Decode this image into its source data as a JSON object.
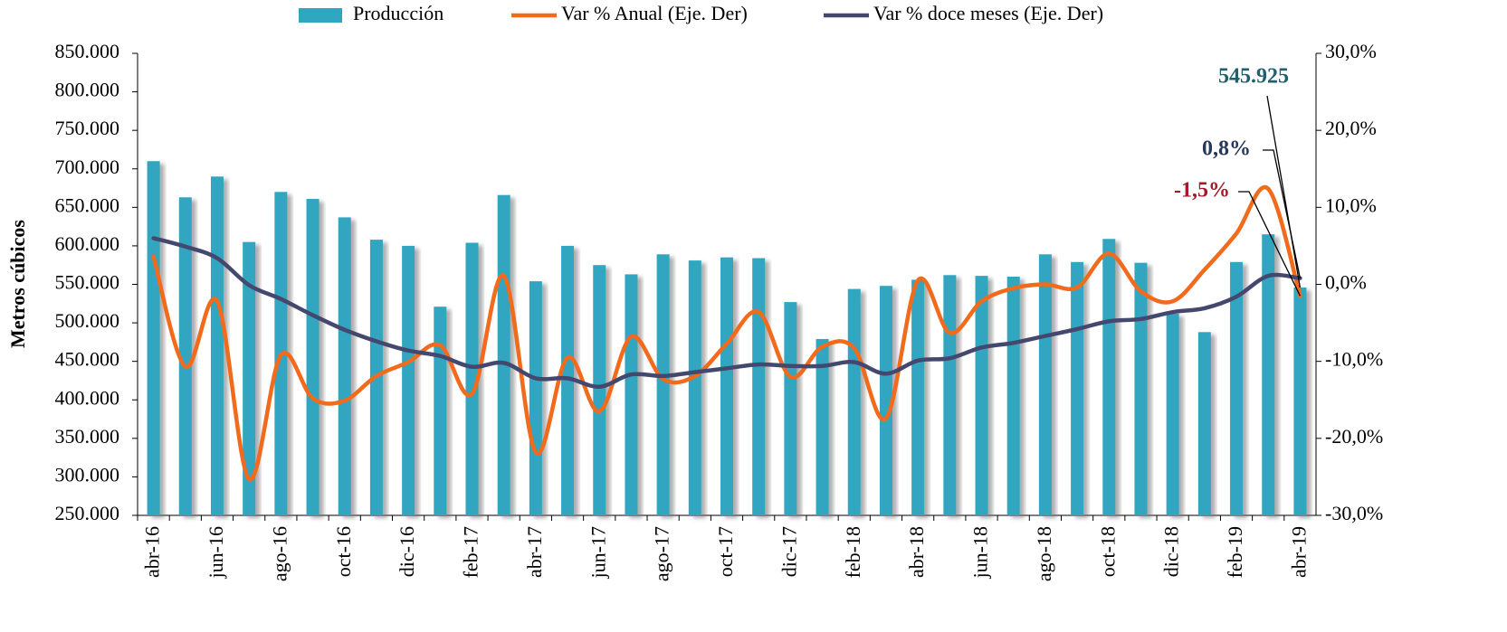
{
  "chart_data": {
    "type": "bar",
    "y_axis_label": "Metros cúbicos",
    "categories": [
      "abr-16",
      null,
      "jun-16",
      null,
      "ago-16",
      null,
      "oct-16",
      null,
      "dic-16",
      null,
      "feb-17",
      null,
      "abr-17",
      null,
      "jun-17",
      null,
      "ago-17",
      null,
      "oct-17",
      null,
      "dic-17",
      null,
      "feb-18",
      null,
      "abr-18",
      null,
      "jun-18",
      null,
      "ago-18",
      null,
      "oct-18",
      null,
      "dic-18",
      null,
      "feb-19",
      null,
      "abr-19"
    ],
    "series": [
      {
        "name": "Producción",
        "type": "bar",
        "color": "#31a6c0",
        "values": [
          710000,
          663000,
          690000,
          605000,
          670000,
          661000,
          637000,
          608000,
          600000,
          521000,
          604000,
          666000,
          554000,
          600000,
          575000,
          563000,
          589000,
          581000,
          585000,
          584000,
          527000,
          479000,
          544000,
          548000,
          556000,
          562000,
          561000,
          560000,
          589000,
          579000,
          609000,
          578000,
          512000,
          488000,
          579000,
          615000,
          545925
        ],
        "value_labels": [
          null,
          null,
          null,
          null,
          null,
          null,
          null,
          null,
          null,
          null,
          null,
          null,
          null,
          null,
          null,
          null,
          null,
          null,
          null,
          null,
          null,
          null,
          null,
          null,
          null,
          null,
          null,
          null,
          null,
          null,
          null,
          null,
          null,
          null,
          null,
          null,
          "545.925"
        ]
      },
      {
        "name": "Var % Anual (Eje. Der)",
        "type": "line",
        "axis": "y2",
        "color": "#f26a1b",
        "values": [
          3.6,
          -10.7,
          -2.2,
          -25.3,
          -9.2,
          -14.8,
          -15.1,
          -11.9,
          -10.1,
          -7.9,
          -14.2,
          1.1,
          -21.8,
          -9.5,
          -16.5,
          -6.8,
          -12.3,
          -11.9,
          -7.7,
          -3.6,
          -12.0,
          -8.1,
          -8.3,
          -17.4,
          0.5,
          -6.3,
          -2.2,
          -0.5,
          0.0,
          -0.4,
          4.0,
          -0.9,
          -2.2,
          1.9,
          6.6,
          12.4,
          -1.5
        ],
        "value_labels": [
          null,
          null,
          null,
          null,
          null,
          null,
          null,
          null,
          null,
          null,
          null,
          null,
          null,
          null,
          null,
          null,
          null,
          null,
          null,
          null,
          null,
          null,
          null,
          null,
          null,
          null,
          null,
          null,
          null,
          null,
          null,
          null,
          null,
          null,
          null,
          null,
          "-1,5%"
        ]
      },
      {
        "name": "Var % doce meses (Eje. Der)",
        "type": "line",
        "axis": "y2",
        "color": "#44486f",
        "values": [
          6.0,
          4.9,
          3.4,
          -0.1,
          -1.9,
          -4.0,
          -5.9,
          -7.4,
          -8.6,
          -9.3,
          -10.7,
          -10.2,
          -12.2,
          -12.2,
          -13.3,
          -11.7,
          -11.9,
          -11.4,
          -10.9,
          -10.4,
          -10.6,
          -10.6,
          -10.1,
          -11.6,
          -9.9,
          -9.6,
          -8.2,
          -7.6,
          -6.7,
          -5.8,
          -4.8,
          -4.5,
          -3.6,
          -3.1,
          -1.6,
          1.1,
          0.8
        ],
        "value_labels": [
          null,
          null,
          null,
          null,
          null,
          null,
          null,
          null,
          null,
          null,
          null,
          null,
          null,
          null,
          null,
          null,
          null,
          null,
          null,
          null,
          null,
          null,
          null,
          null,
          null,
          null,
          null,
          null,
          null,
          null,
          null,
          null,
          null,
          null,
          null,
          null,
          "0,8%"
        ]
      }
    ],
    "ylim": [
      250000,
      850000
    ],
    "yticks": [
      {
        "value": 250000,
        "label": "250.000"
      },
      {
        "value": 300000,
        "label": "300.000"
      },
      {
        "value": 350000,
        "label": "350.000"
      },
      {
        "value": 400000,
        "label": "400.000"
      },
      {
        "value": 450000,
        "label": "450.000"
      },
      {
        "value": 500000,
        "label": "500.000"
      },
      {
        "value": 550000,
        "label": "550.000"
      },
      {
        "value": 600000,
        "label": "600.000"
      },
      {
        "value": 650000,
        "label": "650.000"
      },
      {
        "value": 700000,
        "label": "700.000"
      },
      {
        "value": 750000,
        "label": "750.000"
      },
      {
        "value": 800000,
        "label": "800.000"
      },
      {
        "value": 850000,
        "label": "850.000"
      }
    ],
    "y2lim": [
      -30,
      30
    ],
    "y2ticks": [
      {
        "value": -30,
        "label": "-30,0%"
      },
      {
        "value": -20,
        "label": "-20,0%"
      },
      {
        "value": -10,
        "label": "-10,0%"
      },
      {
        "value": 0,
        "label": "0,0%"
      },
      {
        "value": 10,
        "label": "10,0%"
      },
      {
        "value": 20,
        "label": "20,0%"
      },
      {
        "value": 30,
        "label": "30,0%"
      }
    ],
    "grid": false,
    "legend": "top"
  }
}
